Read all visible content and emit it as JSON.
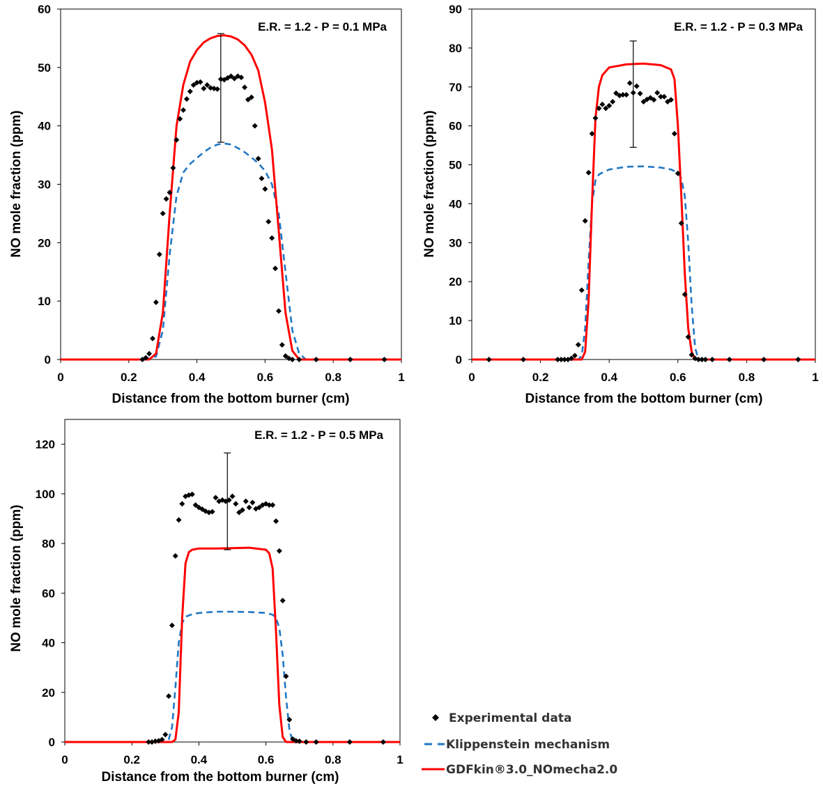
{
  "chart_data": [
    {
      "type": "line",
      "title": "E.R. = 1.2 - P = 0.1 MPa",
      "xlabel": "Distance from the bottom burner (cm)",
      "ylabel": "NO mole fraction (ppm)",
      "xlim": [
        0,
        1
      ],
      "ylim": [
        0,
        60
      ],
      "xticks": [
        "0",
        "0.2",
        "0.4",
        "0.6",
        "0.8",
        "1"
      ],
      "yticks": [
        "0",
        "10",
        "20",
        "30",
        "40",
        "50",
        "60"
      ],
      "grid": false,
      "error_bar": {
        "x": 0.47,
        "low": 37.2,
        "high": 55.8
      },
      "series": [
        {
          "name": "Experimental data",
          "kind": "scatter",
          "color": "#000000",
          "x": [
            0.24,
            0.25,
            0.26,
            0.27,
            0.28,
            0.29,
            0.3,
            0.31,
            0.32,
            0.33,
            0.34,
            0.35,
            0.36,
            0.37,
            0.38,
            0.39,
            0.4,
            0.41,
            0.42,
            0.43,
            0.44,
            0.45,
            0.46,
            0.47,
            0.48,
            0.49,
            0.5,
            0.51,
            0.52,
            0.53,
            0.54,
            0.55,
            0.56,
            0.57,
            0.58,
            0.59,
            0.6,
            0.61,
            0.62,
            0.63,
            0.64,
            0.65,
            0.66,
            0.67,
            0.68,
            0.7,
            0.75,
            0.85,
            0.95
          ],
          "y": [
            0,
            0.3,
            1.0,
            3.6,
            9.8,
            18.0,
            25.0,
            27.5,
            28.6,
            32.8,
            37.6,
            41.2,
            42.7,
            44.6,
            45.9,
            47.0,
            47.4,
            47.5,
            46.4,
            47.0,
            46.5,
            46.4,
            46.3,
            48.0,
            47.9,
            48.2,
            48.5,
            48.1,
            48.5,
            48.3,
            46.6,
            44.5,
            44.9,
            40.0,
            34.4,
            31.0,
            29.2,
            23.6,
            20.8,
            15.6,
            8.3,
            2.5,
            0.6,
            0.2,
            0,
            0,
            0,
            0,
            0
          ]
        },
        {
          "name": "Klippenstein mechanism",
          "kind": "dashed",
          "color": "#1f77c4",
          "x": [
            0,
            0.25,
            0.28,
            0.3,
            0.32,
            0.34,
            0.36,
            0.38,
            0.4,
            0.42,
            0.44,
            0.46,
            0.48,
            0.5,
            0.52,
            0.54,
            0.56,
            0.58,
            0.6,
            0.62,
            0.64,
            0.66,
            0.68,
            0.7,
            0.72,
            0.75,
            1
          ],
          "y": [
            0,
            0,
            0.5,
            5,
            18,
            28,
            32,
            33.5,
            34.5,
            35.5,
            36.3,
            36.8,
            37,
            36.8,
            36.2,
            35.5,
            34.6,
            33.6,
            32.3,
            30,
            25,
            15,
            5,
            1,
            0,
            0,
            0
          ]
        },
        {
          "name": "GDFkin®3.0_NOmecha2.0",
          "kind": "solid",
          "color": "#ff0000",
          "x": [
            0,
            0.26,
            0.28,
            0.3,
            0.32,
            0.34,
            0.36,
            0.38,
            0.4,
            0.42,
            0.44,
            0.46,
            0.48,
            0.5,
            0.52,
            0.54,
            0.56,
            0.58,
            0.6,
            0.62,
            0.64,
            0.66,
            0.68,
            0.7,
            1
          ],
          "y": [
            0,
            0,
            1,
            8,
            25,
            40,
            47,
            51,
            53,
            54.3,
            55,
            55.4,
            55.5,
            55.3,
            54.8,
            53.8,
            52.2,
            49.5,
            44,
            36,
            22,
            8,
            1.5,
            0,
            0
          ]
        }
      ]
    },
    {
      "type": "line",
      "title": "E.R. = 1.2 - P = 0.3 MPa",
      "xlabel": "Distance from the bottom burner (cm)",
      "ylabel": "NO mole fraction (ppm)",
      "xlim": [
        0,
        1
      ],
      "ylim": [
        0,
        90
      ],
      "xticks": [
        "0",
        "0.2",
        "0.4",
        "0.6",
        "0.8",
        "1"
      ],
      "yticks": [
        "0",
        "10",
        "20",
        "30",
        "40",
        "50",
        "60",
        "70",
        "80",
        "90"
      ],
      "grid": false,
      "error_bar": {
        "x": 0.47,
        "low": 54.5,
        "high": 81.8
      },
      "series": [
        {
          "name": "Experimental data",
          "kind": "scatter",
          "color": "#000000",
          "x": [
            0.05,
            0.15,
            0.25,
            0.26,
            0.27,
            0.28,
            0.29,
            0.3,
            0.31,
            0.32,
            0.33,
            0.34,
            0.35,
            0.36,
            0.37,
            0.38,
            0.39,
            0.4,
            0.41,
            0.42,
            0.43,
            0.44,
            0.45,
            0.46,
            0.47,
            0.48,
            0.49,
            0.5,
            0.51,
            0.52,
            0.53,
            0.54,
            0.55,
            0.56,
            0.57,
            0.58,
            0.59,
            0.6,
            0.61,
            0.62,
            0.63,
            0.64,
            0.65,
            0.66,
            0.67,
            0.68,
            0.7,
            0.75,
            0.85,
            0.95
          ],
          "y": [
            0,
            0,
            0,
            0,
            0,
            0,
            0.3,
            1,
            3.8,
            17.8,
            35.6,
            48,
            58,
            62,
            64.5,
            65.5,
            64.5,
            65.2,
            66.2,
            68.4,
            67.8,
            68,
            68,
            71,
            68.5,
            70.2,
            68.3,
            66.2,
            66.8,
            67.2,
            66.7,
            68.5,
            67.5,
            67.5,
            66.2,
            66.7,
            58,
            47.8,
            35,
            16.7,
            5.8,
            1.2,
            0.3,
            0,
            0,
            0,
            0,
            0,
            0,
            0
          ]
        },
        {
          "name": "Klippenstein mechanism",
          "kind": "dashed",
          "color": "#1f77c4",
          "x": [
            0,
            0.31,
            0.32,
            0.33,
            0.34,
            0.35,
            0.36,
            0.37,
            0.38,
            0.4,
            0.45,
            0.5,
            0.55,
            0.58,
            0.6,
            0.61,
            0.62,
            0.63,
            0.64,
            0.65,
            0.66,
            1
          ],
          "y": [
            0,
            0,
            1,
            8,
            25,
            40,
            46,
            47.5,
            48,
            48.8,
            49.5,
            49.6,
            49.3,
            48.8,
            48,
            46.5,
            42,
            30,
            14,
            3,
            0,
            0
          ]
        },
        {
          "name": "GDFkin®3.0_NOmecha2.0",
          "kind": "solid",
          "color": "#ff0000",
          "x": [
            0,
            0.32,
            0.33,
            0.34,
            0.35,
            0.36,
            0.37,
            0.38,
            0.4,
            0.45,
            0.5,
            0.55,
            0.58,
            0.59,
            0.6,
            0.61,
            0.62,
            0.63,
            0.64,
            0.65,
            1
          ],
          "y": [
            0,
            0,
            2,
            15,
            40,
            62,
            70,
            73,
            75,
            75.8,
            76,
            75.6,
            74.5,
            72,
            60,
            42,
            22,
            8,
            2,
            0,
            0
          ]
        }
      ]
    },
    {
      "type": "line",
      "title": "E.R. = 1.2 - P = 0.5 MPa",
      "xlabel": "Distance from the bottom burner (cm)",
      "ylabel": "NO mole fraction (ppm)",
      "xlim": [
        0,
        1
      ],
      "ylim": [
        0,
        130
      ],
      "xticks": [
        "0",
        "0.2",
        "0.4",
        "0.6",
        "0.8",
        "1"
      ],
      "yticks": [
        "0",
        "20",
        "40",
        "60",
        "80",
        "100",
        "120"
      ],
      "grid": false,
      "error_bar": {
        "x": 0.485,
        "low": 77.5,
        "high": 116.5
      },
      "series": [
        {
          "name": "Experimental data",
          "kind": "scatter",
          "color": "#000000",
          "x": [
            0.25,
            0.26,
            0.27,
            0.28,
            0.29,
            0.3,
            0.31,
            0.32,
            0.33,
            0.34,
            0.35,
            0.36,
            0.37,
            0.38,
            0.39,
            0.4,
            0.41,
            0.42,
            0.43,
            0.44,
            0.45,
            0.46,
            0.47,
            0.48,
            0.49,
            0.5,
            0.51,
            0.52,
            0.53,
            0.54,
            0.55,
            0.56,
            0.57,
            0.58,
            0.59,
            0.6,
            0.61,
            0.62,
            0.63,
            0.64,
            0.65,
            0.66,
            0.67,
            0.68,
            0.69,
            0.7,
            0.72,
            0.75,
            0.85,
            0.95
          ],
          "y": [
            0,
            0,
            0.3,
            0.5,
            1,
            3,
            18.5,
            47,
            75,
            89.5,
            96,
            99,
            99.5,
            99.8,
            95.5,
            94.5,
            93.8,
            93,
            92.5,
            92.8,
            98.5,
            97,
            97.5,
            97,
            97.5,
            99,
            96,
            92.5,
            93.5,
            97,
            94.5,
            96.5,
            94,
            94.5,
            95.5,
            96,
            95.5,
            95.5,
            89,
            77,
            57,
            26.5,
            9,
            1.2,
            0.5,
            0.3,
            0,
            0,
            0,
            0
          ]
        },
        {
          "name": "Klippenstein mechanism",
          "kind": "dashed",
          "color": "#1f77c4",
          "x": [
            0,
            0.3,
            0.31,
            0.32,
            0.33,
            0.34,
            0.35,
            0.36,
            0.38,
            0.4,
            0.45,
            0.5,
            0.55,
            0.6,
            0.62,
            0.63,
            0.64,
            0.65,
            0.66,
            0.67,
            0.68,
            1
          ],
          "y": [
            0,
            0,
            1,
            6,
            22,
            40,
            48,
            50.5,
            51.5,
            52,
            52.5,
            52.5,
            52.4,
            52,
            51.3,
            50,
            46,
            35,
            18,
            5,
            0,
            0
          ]
        },
        {
          "name": "GDFkin®3.0_NOmecha2.0",
          "kind": "solid",
          "color": "#ff0000",
          "x": [
            0,
            0.32,
            0.33,
            0.34,
            0.35,
            0.36,
            0.37,
            0.38,
            0.4,
            0.45,
            0.5,
            0.55,
            0.6,
            0.61,
            0.62,
            0.63,
            0.64,
            0.65,
            0.66,
            1
          ],
          "y": [
            0,
            0,
            1,
            12,
            50,
            72,
            76.5,
            77.5,
            78,
            78,
            78.1,
            78.3,
            77.5,
            76,
            70,
            45,
            15,
            2,
            0,
            0
          ]
        }
      ]
    }
  ],
  "legend": {
    "position": "bottom-right",
    "items": [
      {
        "label": "Experimental data",
        "marker": "diamond",
        "color": "#000000"
      },
      {
        "label": "Klippenstein mechanism",
        "marker": "dash",
        "color": "#1f77c4"
      },
      {
        "label": "GDFkin®3.0_NOmecha2.0",
        "marker": "line",
        "color": "#ff0000"
      }
    ]
  }
}
